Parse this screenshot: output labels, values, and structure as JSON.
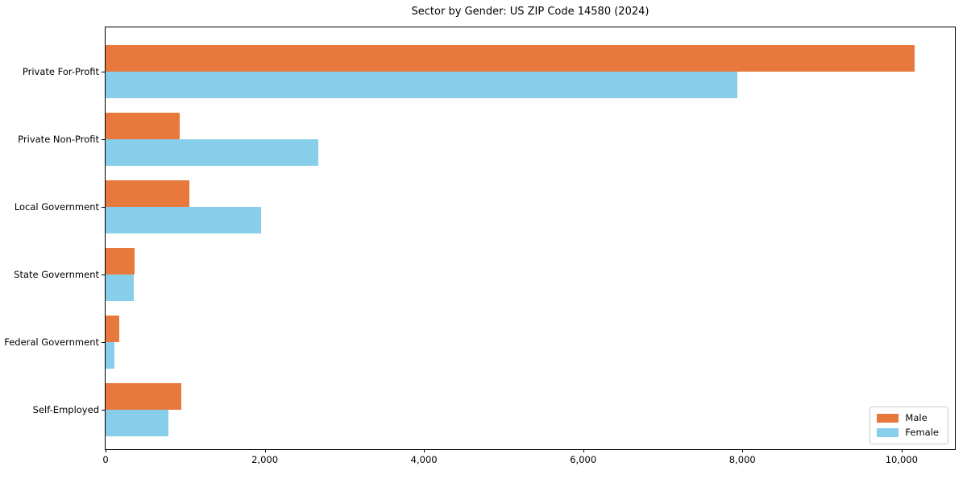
{
  "chart_data": {
    "type": "bar",
    "orientation": "horizontal",
    "title": "Sector by Gender: US ZIP Code 14580 (2024)",
    "categories": [
      "Private For-Profit",
      "Private Non-Profit",
      "Local Government",
      "State Government",
      "Federal Government",
      "Self-Employed"
    ],
    "series": [
      {
        "name": "Male",
        "color": "#e8793d",
        "values": [
          10180,
          930,
          1050,
          365,
          175,
          950
        ]
      },
      {
        "name": "Female",
        "color": "#87ceeb",
        "values": [
          7950,
          2680,
          1960,
          355,
          110,
          790
        ]
      }
    ],
    "xlabel": "",
    "ylabel": "",
    "xlim": [
      0,
      10690
    ],
    "xticks": [
      0,
      2000,
      4000,
      6000,
      8000,
      10000
    ],
    "xtick_labels": [
      "0",
      "2,000",
      "4,000",
      "6,000",
      "8,000",
      "10,000"
    ],
    "grid": false,
    "legend_position": "lower right",
    "colors": {
      "axis": "#000000",
      "legend_border": "#cccccc",
      "background": "#ffffff"
    }
  }
}
